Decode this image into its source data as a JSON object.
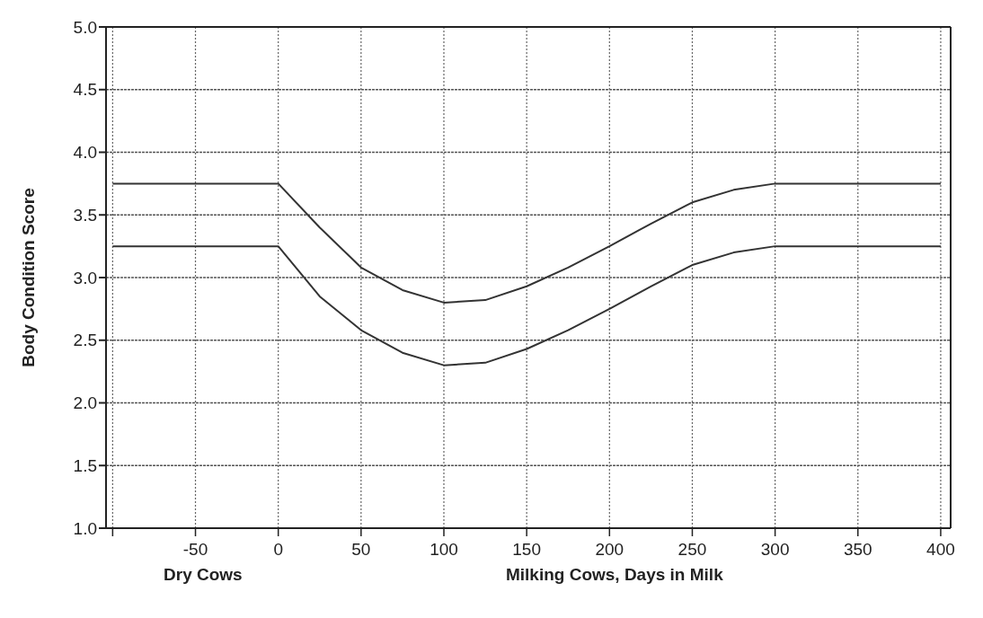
{
  "chart_data": {
    "type": "line",
    "xlabel": "Milking Cows, Days in Milk",
    "ylabel": "Body Condition Score",
    "annotations": [
      "Dry Cows"
    ],
    "xlim": [
      -104,
      406
    ],
    "xticks": [
      {
        "value": -100,
        "label": null
      },
      -50,
      0,
      50,
      100,
      150,
      200,
      250,
      300,
      350,
      400
    ],
    "ylim": [
      1.0,
      5.0
    ],
    "yticks": [
      {
        "value": 1,
        "label": "1.0"
      },
      1.5,
      {
        "value": 2,
        "label": "2.0"
      },
      2.5,
      {
        "value": 3,
        "label": "3.0"
      },
      3.5,
      {
        "value": 4,
        "label": "4.0"
      },
      4.5,
      {
        "value": 5,
        "label": "5.0"
      }
    ],
    "grid": true,
    "marker": "none",
    "line_style": "solid",
    "series": [
      {
        "color": "#333333",
        "x": [
          -100,
          0,
          25,
          50,
          75,
          100,
          125,
          150,
          175,
          200,
          225,
          250,
          275,
          300,
          400
        ],
        "values": [
          3.75,
          3.75,
          3.4,
          3.08,
          2.9,
          2.8,
          2.82,
          2.93,
          3.08,
          3.25,
          3.43,
          3.6,
          3.7,
          3.75,
          3.75
        ]
      },
      {
        "color": "#333333",
        "x": [
          -100,
          0,
          25,
          50,
          75,
          100,
          125,
          150,
          175,
          200,
          225,
          250,
          275,
          300,
          400
        ],
        "values": [
          3.25,
          3.25,
          2.85,
          2.58,
          2.4,
          2.3,
          2.32,
          2.43,
          2.58,
          2.75,
          2.93,
          3.1,
          3.2,
          3.25,
          3.25
        ]
      }
    ]
  }
}
